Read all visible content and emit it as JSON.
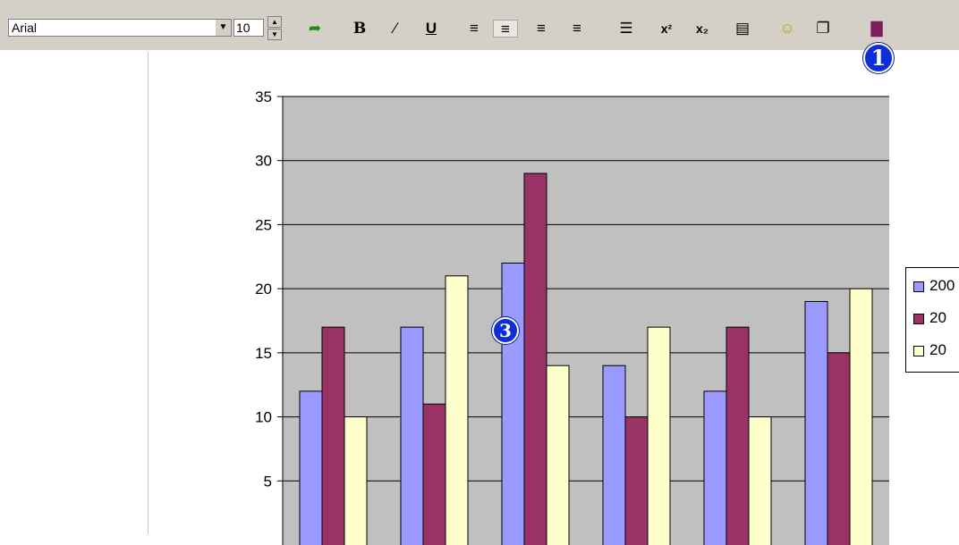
{
  "toolbar": {
    "font_name": "Arial",
    "font_size": "10",
    "buttons": [
      {
        "name": "undo-icon",
        "glyph": "➦"
      },
      {
        "name": "bold-icon",
        "glyph": "B"
      },
      {
        "name": "italic-icon",
        "glyph": "∕"
      },
      {
        "name": "underline-icon",
        "glyph": "U"
      },
      {
        "name": "align-left-icon",
        "glyph": "≡"
      },
      {
        "name": "align-center-icon",
        "glyph": "≡"
      },
      {
        "name": "align-right-icon",
        "glyph": "≡"
      },
      {
        "name": "justify-icon",
        "glyph": "≡"
      },
      {
        "name": "bullet-list-icon",
        "glyph": "☰"
      },
      {
        "name": "superscript-icon",
        "glyph": "x²"
      },
      {
        "name": "subscript-icon",
        "glyph": "x₂"
      },
      {
        "name": "table-icon",
        "glyph": "▤"
      },
      {
        "name": "palette-icon",
        "glyph": "☺"
      },
      {
        "name": "document-icon",
        "glyph": "❐"
      },
      {
        "name": "chart-icon",
        "glyph": "▇"
      }
    ],
    "active_button": "align-center-icon"
  },
  "callouts": {
    "toolbar_callout": "1",
    "chart_callout": "3"
  },
  "chart_data": {
    "type": "bar",
    "categories": [
      "",
      "",
      "",
      "",
      "",
      ""
    ],
    "series": [
      {
        "name": "20",
        "color": "#9999ff",
        "values": [
          12,
          17,
          22,
          14,
          12,
          19
        ]
      },
      {
        "name": "20",
        "color": "#993366",
        "values": [
          17,
          11,
          29,
          10,
          17,
          15
        ]
      },
      {
        "name": "20",
        "color": "#ffffcc",
        "values": [
          10,
          21,
          14,
          17,
          10,
          20
        ]
      }
    ],
    "yticks": [
      "35",
      "30",
      "25",
      "20",
      "15",
      "10",
      "5"
    ],
    "ylim": [
      0,
      35
    ],
    "grid": true,
    "plot_background": "#c0c0c0",
    "legend": [
      "200",
      "20",
      "20"
    ]
  }
}
